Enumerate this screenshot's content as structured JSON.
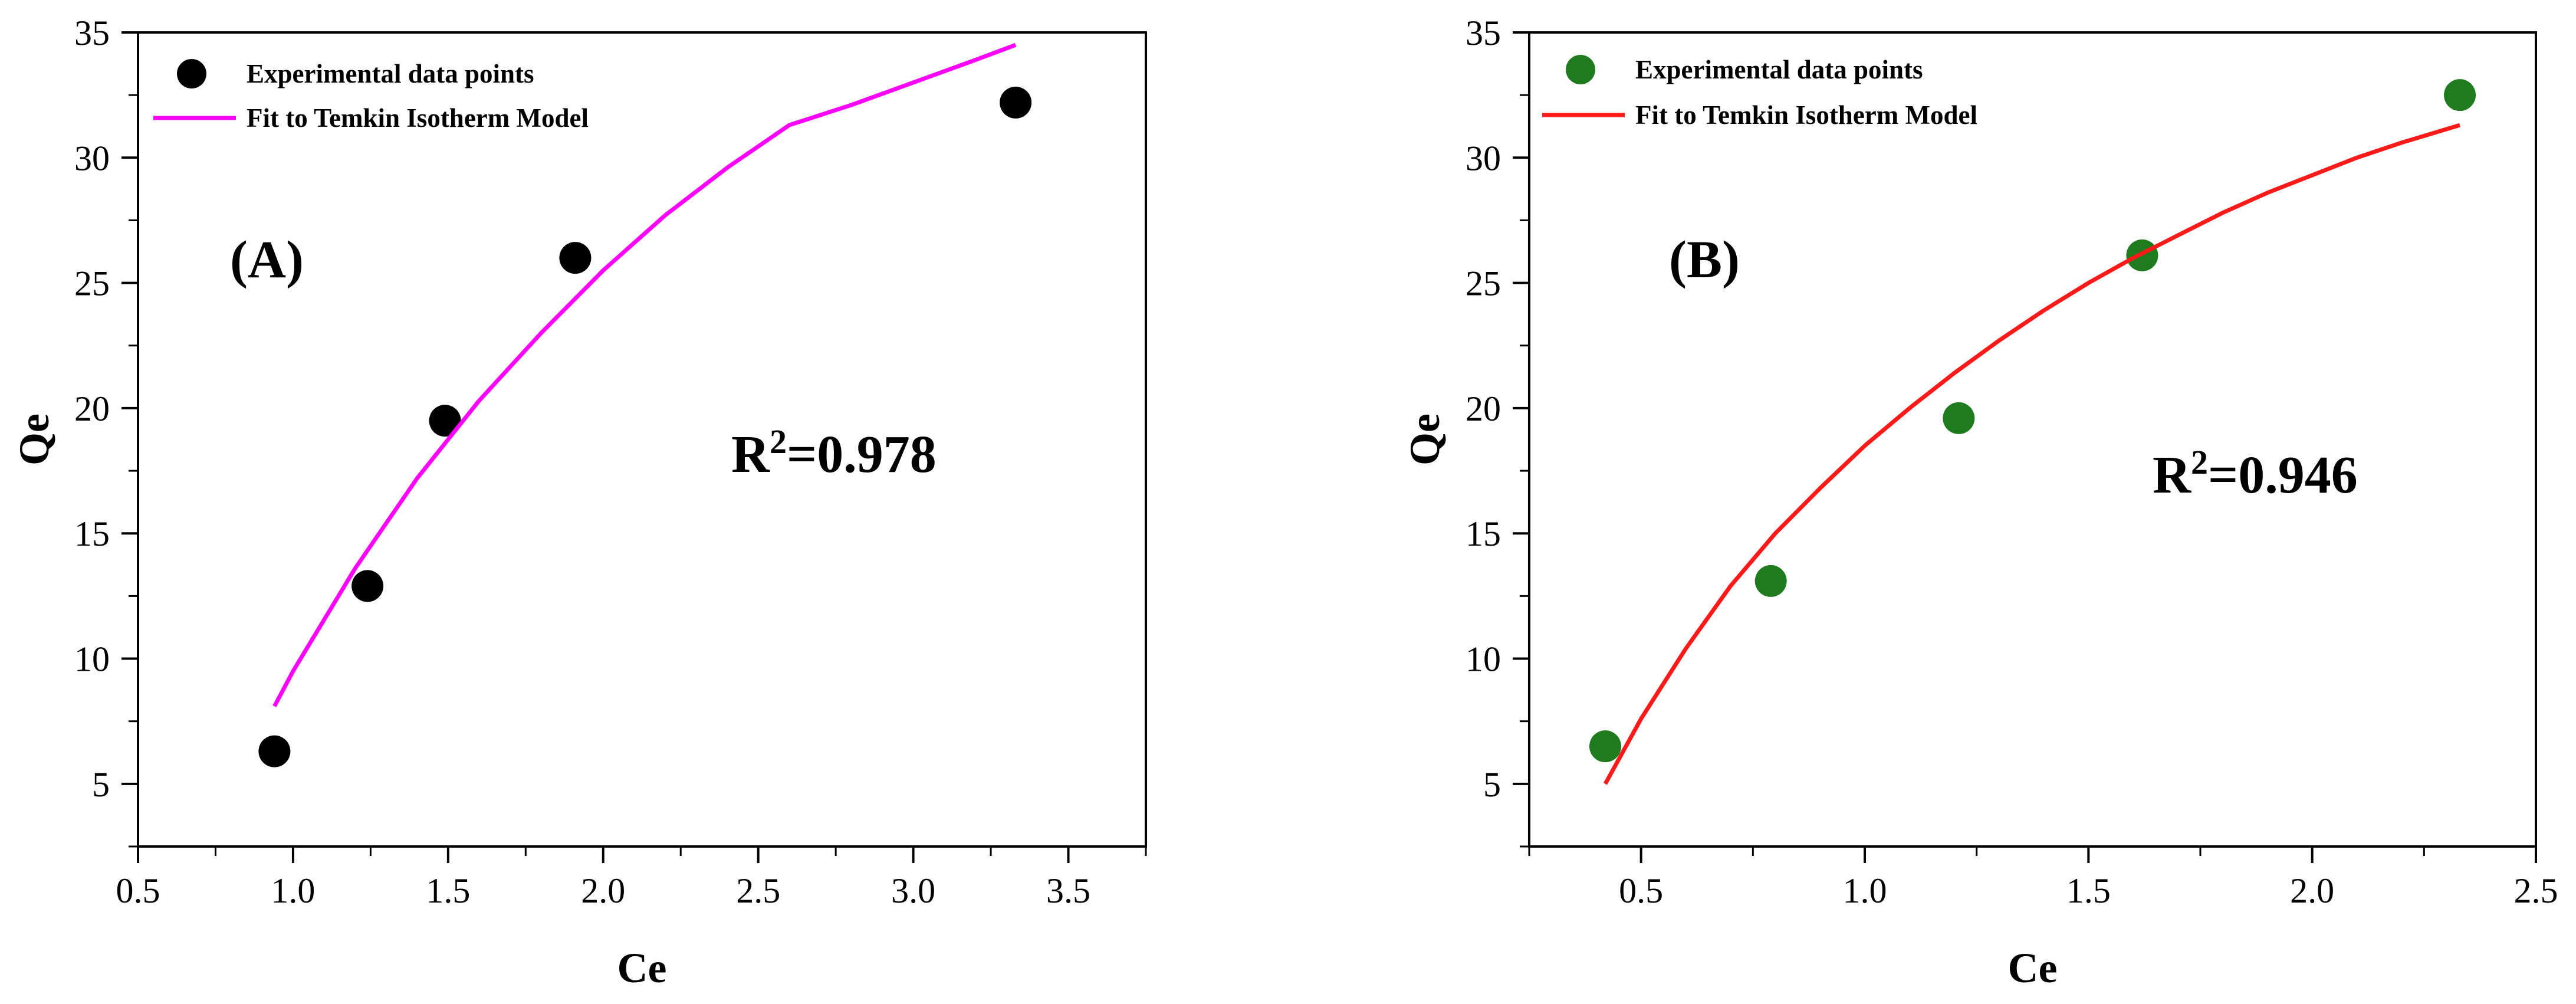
{
  "chart_data": [
    {
      "type": "scatter",
      "panel_label": "(A)",
      "xlabel": "Ce",
      "ylabel": "Qe",
      "xlim": [
        0.5,
        3.75
      ],
      "ylim": [
        2.5,
        35
      ],
      "xticks": [
        0.5,
        1.0,
        1.5,
        2.0,
        2.5,
        3.0,
        3.5
      ],
      "xtick_labels": [
        "0.5",
        "1.0",
        "1.5",
        "2.0",
        "2.5",
        "3.0",
        "3.5"
      ],
      "yticks": [
        5,
        10,
        15,
        20,
        25,
        30,
        35
      ],
      "ytick_labels": [
        "5",
        "10",
        "15",
        "20",
        "25",
        "30",
        "35"
      ],
      "grid": false,
      "legend_position": "top-left",
      "annotation": {
        "prefix": "R",
        "sup": "2",
        "suffix": "=0.978"
      },
      "series": [
        {
          "name": "Experimental data points",
          "kind": "points",
          "color": "#000000",
          "x": [
            0.94,
            1.24,
            1.49,
            1.91,
            3.33
          ],
          "y": [
            6.3,
            12.9,
            19.5,
            26.0,
            32.2
          ]
        },
        {
          "name": "Fit to Temkin Isotherm Model",
          "kind": "line",
          "color": "#ff00ff",
          "x": [
            0.94,
            1.0,
            1.2,
            1.4,
            1.6,
            1.8,
            2.0,
            2.2,
            2.4,
            2.6,
            2.8,
            3.0,
            3.2,
            3.33
          ],
          "y": [
            8.1,
            9.5,
            13.6,
            17.2,
            20.3,
            23.0,
            25.5,
            27.7,
            29.6,
            31.3,
            32.1,
            33.0,
            33.9,
            34.5
          ]
        }
      ]
    },
    {
      "type": "scatter",
      "panel_label": "(B)",
      "xlabel": "Ce",
      "ylabel": "Qe",
      "xlim": [
        0.25,
        2.5
      ],
      "ylim": [
        2.5,
        35
      ],
      "xticks": [
        0.5,
        1.0,
        1.5,
        2.0,
        2.5
      ],
      "xtick_labels": [
        "0.5",
        "1.0",
        "1.5",
        "2.0",
        "2.5"
      ],
      "yticks": [
        5,
        10,
        15,
        20,
        25,
        30,
        35
      ],
      "ytick_labels": [
        "5",
        "10",
        "15",
        "20",
        "25",
        "30",
        "35"
      ],
      "grid": false,
      "legend_position": "top-left",
      "annotation": {
        "prefix": "R",
        "sup": "2",
        "suffix": "=0.946"
      },
      "series": [
        {
          "name": "Experimental data points",
          "kind": "points",
          "color": "#1e7b1e",
          "x": [
            0.42,
            0.79,
            1.21,
            1.62,
            2.33
          ],
          "y": [
            6.5,
            13.1,
            19.6,
            26.1,
            32.5
          ]
        },
        {
          "name": "Fit to Temkin Isotherm Model",
          "kind": "line",
          "color": "#ff1a1a",
          "x": [
            0.42,
            0.5,
            0.6,
            0.7,
            0.8,
            0.9,
            1.0,
            1.1,
            1.2,
            1.3,
            1.4,
            1.5,
            1.6,
            1.7,
            1.8,
            1.9,
            2.0,
            2.1,
            2.2,
            2.33
          ],
          "y": [
            5.0,
            7.6,
            10.4,
            12.9,
            15.0,
            16.8,
            18.5,
            20.0,
            21.4,
            22.7,
            23.9,
            25.0,
            26.0,
            26.9,
            27.8,
            28.6,
            29.3,
            30.0,
            30.6,
            31.3
          ]
        }
      ]
    }
  ]
}
